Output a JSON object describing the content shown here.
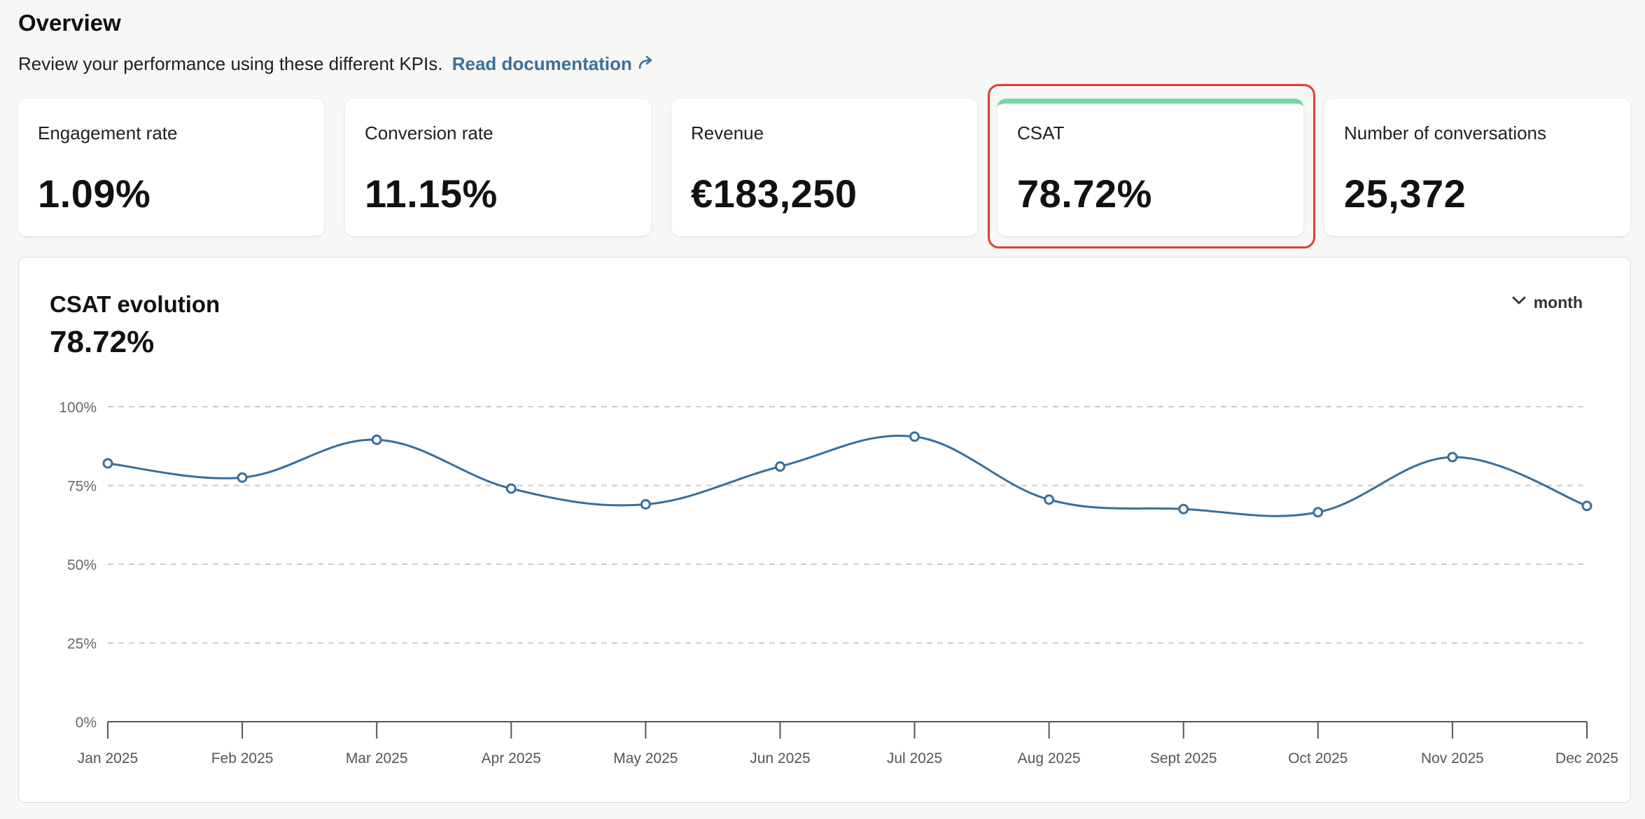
{
  "header": {
    "title": "Overview",
    "subtitle": "Review your performance using these different KPIs.",
    "doc_link": "Read documentation",
    "doc_link_icon": "share-arrow-icon"
  },
  "kpis": [
    {
      "label": "Engagement rate",
      "value": "1.09%"
    },
    {
      "label": "Conversion rate",
      "value": "11.15%"
    },
    {
      "label": "Revenue",
      "value": "€183,250"
    },
    {
      "label": "CSAT",
      "value": "78.72%",
      "selected": true
    },
    {
      "label": "Number of conversations",
      "value": "25,372"
    }
  ],
  "colors": {
    "accent": "#3d6f99",
    "selected_bar": "#72d8a4",
    "highlight": "#e0402f",
    "line": "#3a6f9a",
    "grid": "#cccccc"
  },
  "chart": {
    "title": "CSAT evolution",
    "value": "78.72%",
    "period_label": "month",
    "period_icon": "chevron-down-icon"
  },
  "chart_data": {
    "type": "line",
    "categories": [
      "Jan 2025",
      "Feb 2025",
      "Mar 2025",
      "Apr 2025",
      "May 2025",
      "Jun 2025",
      "Jul 2025",
      "Aug 2025",
      "Sept 2025",
      "Oct 2025",
      "Nov 2025",
      "Dec 2025"
    ],
    "values": [
      82,
      77.5,
      89.5,
      74,
      69,
      81,
      90.5,
      70.5,
      67.5,
      66.5,
      84,
      68.5
    ],
    "ylim": [
      0,
      100
    ],
    "yticks": [
      0,
      25,
      50,
      75,
      100
    ],
    "ytick_labels": [
      "0%",
      "25%",
      "50%",
      "75%",
      "100%"
    ],
    "grid": true,
    "smooth": true
  }
}
